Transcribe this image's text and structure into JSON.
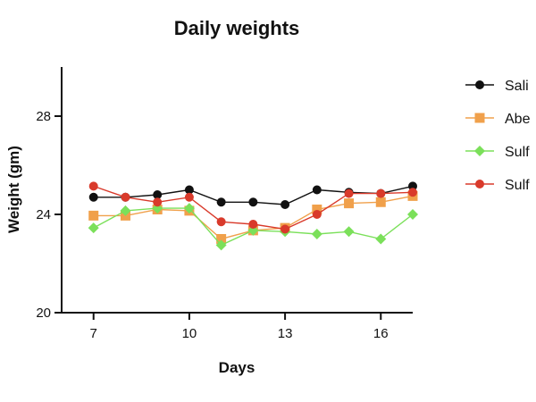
{
  "chart_data": {
    "type": "line",
    "title": "Daily weights",
    "xlabel": "Days",
    "ylabel": "Weight (gm)",
    "xlim": [
      6,
      17
    ],
    "ylim": [
      20,
      30
    ],
    "xticks": [
      7,
      10,
      13,
      16
    ],
    "yticks": [
      20,
      24,
      28
    ],
    "x": [
      7,
      8,
      9,
      10,
      11,
      12,
      13,
      14,
      15,
      16,
      17
    ],
    "legend_position": "right",
    "series": [
      {
        "name": "Sali",
        "color": "#111111",
        "marker": "circle",
        "values": [
          24.7,
          24.7,
          24.8,
          25.0,
          24.5,
          24.5,
          24.4,
          25.0,
          24.9,
          24.85,
          25.15
        ]
      },
      {
        "name": "Abe",
        "color": "#f0a04b",
        "marker": "square",
        "values": [
          23.95,
          23.95,
          24.2,
          24.15,
          23.0,
          23.35,
          23.45,
          24.2,
          24.45,
          24.5,
          24.75
        ]
      },
      {
        "name": "Sulf",
        "color": "#7be05a",
        "marker": "diamond",
        "values": [
          23.45,
          24.15,
          24.25,
          24.25,
          22.75,
          23.35,
          23.3,
          23.2,
          23.3,
          23.0,
          24.0
        ]
      },
      {
        "name": "Sulf",
        "color": "#d93a2b",
        "marker": "circle",
        "values": [
          25.15,
          24.7,
          24.5,
          24.7,
          23.7,
          23.6,
          23.4,
          24.0,
          24.85,
          24.85,
          24.9
        ]
      }
    ]
  }
}
